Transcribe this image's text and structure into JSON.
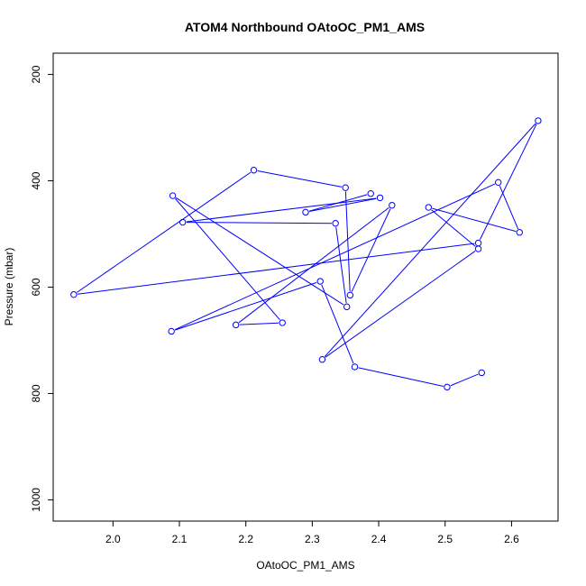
{
  "chart_data": {
    "type": "line",
    "title": "ATOM4 Northbound OAtoOC_PM1_AMS",
    "xlabel": "OAtoOC_PM1_AMS",
    "ylabel": "Pressure (mbar)",
    "xlim": [
      1.91,
      2.67
    ],
    "ylim": [
      1040,
      160
    ],
    "y_reversed": true,
    "x_ticks": [
      2.0,
      2.1,
      2.2,
      2.3,
      2.4,
      2.5,
      2.6
    ],
    "x_tick_labels": [
      "2.0",
      "2.1",
      "2.2",
      "2.3",
      "2.4",
      "2.5",
      "2.6"
    ],
    "y_ticks": [
      200,
      400,
      600,
      800,
      1000
    ],
    "y_tick_labels": [
      "200",
      "400",
      "600",
      "800",
      "1000"
    ],
    "grid": false,
    "marker": "open-circle",
    "line_color": "#0000ff",
    "series": [
      {
        "points": [
          {
            "x": 2.555,
            "y": 761
          },
          {
            "x": 2.503,
            "y": 788
          },
          {
            "x": 2.364,
            "y": 750
          },
          {
            "x": 2.312,
            "y": 589
          },
          {
            "x": 2.088,
            "y": 683
          },
          {
            "x": 2.58,
            "y": 403
          },
          {
            "x": 2.612,
            "y": 497
          },
          {
            "x": 2.475,
            "y": 450
          },
          {
            "x": 2.55,
            "y": 528
          },
          {
            "x": 2.315,
            "y": 736
          },
          {
            "x": 2.64,
            "y": 287
          },
          {
            "x": 2.55,
            "y": 517
          },
          {
            "x": 1.941,
            "y": 614
          },
          {
            "x": 2.212,
            "y": 380
          },
          {
            "x": 2.35,
            "y": 413
          },
          {
            "x": 2.357,
            "y": 615
          },
          {
            "x": 2.42,
            "y": 446
          },
          {
            "x": 2.185,
            "y": 671
          },
          {
            "x": 2.255,
            "y": 667
          },
          {
            "x": 2.09,
            "y": 428
          },
          {
            "x": 2.352,
            "y": 637
          },
          {
            "x": 2.335,
            "y": 480
          },
          {
            "x": 2.105,
            "y": 478
          },
          {
            "x": 2.402,
            "y": 432
          },
          {
            "x": 2.29,
            "y": 459
          },
          {
            "x": 2.388,
            "y": 424
          }
        ]
      }
    ]
  }
}
